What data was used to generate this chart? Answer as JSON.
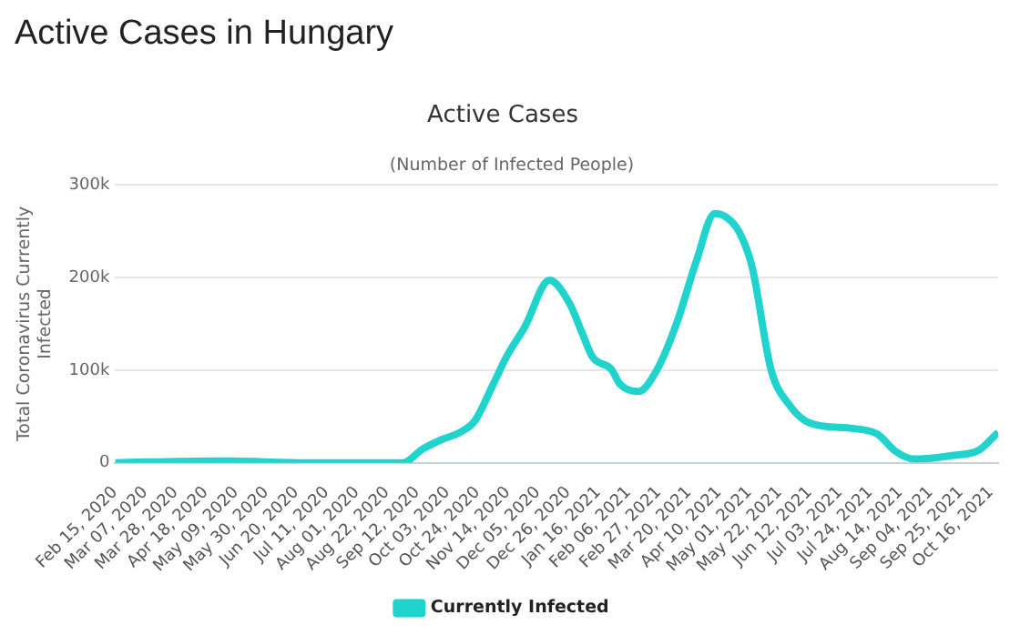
{
  "chart_data": {
    "type": "line",
    "title": "Active Cases in Hungary",
    "subtitle": "Active Cases",
    "annotations": [
      "(Number of Infected People)"
    ],
    "ylabel": "Total Coronavirus Currently Infected",
    "series": [
      {
        "name": "Currently Infected",
        "color": "#20d3cc",
        "x": [
          "2020-02-15",
          "2020-04-25",
          "2020-07-01",
          "2020-09-02",
          "2020-09-16",
          "2020-09-29",
          "2020-10-12",
          "2020-10-22",
          "2020-11-04",
          "2020-11-13",
          "2020-11-26",
          "2020-12-13",
          "2020-12-27",
          "2021-01-05",
          "2021-01-12",
          "2021-01-25",
          "2021-01-31",
          "2021-02-13",
          "2021-02-26",
          "2021-03-12",
          "2021-03-25",
          "2021-04-07",
          "2021-04-15",
          "2021-04-24",
          "2021-05-03",
          "2021-05-16",
          "2021-05-29",
          "2021-06-12",
          "2021-07-12",
          "2021-07-29",
          "2021-08-11",
          "2021-08-24",
          "2021-09-20",
          "2021-10-08",
          "2021-10-21"
        ],
        "values": [
          0,
          2000,
          0,
          0,
          15000,
          25000,
          33000,
          45000,
          85000,
          114000,
          147000,
          197000,
          172000,
          139000,
          114000,
          101000,
          85000,
          77000,
          101000,
          153000,
          217000,
          269000,
          265000,
          249000,
          211000,
          101000,
          62000,
          43000,
          37000,
          31000,
          12000,
          4000,
          8000,
          14000,
          33000
        ]
      }
    ],
    "xlim": [
      "2020-02-15",
      "2021-10-21"
    ],
    "xticks": [
      {
        "value": "2020-02-15",
        "label": "Feb 15, 2020"
      },
      {
        "value": "2020-03-07",
        "label": "Mar 07, 2020"
      },
      {
        "value": "2020-03-28",
        "label": "Mar 28, 2020"
      },
      {
        "value": "2020-04-18",
        "label": "Apr 18, 2020"
      },
      {
        "value": "2020-05-09",
        "label": "May 09, 2020"
      },
      {
        "value": "2020-05-30",
        "label": "May 30, 2020"
      },
      {
        "value": "2020-06-20",
        "label": "Jun 20, 2020"
      },
      {
        "value": "2020-07-11",
        "label": "Jul 11, 2020"
      },
      {
        "value": "2020-08-01",
        "label": "Aug 01, 2020"
      },
      {
        "value": "2020-08-22",
        "label": "Aug 22, 2020"
      },
      {
        "value": "2020-09-12",
        "label": "Sep 12, 2020"
      },
      {
        "value": "2020-10-03",
        "label": "Oct 03, 2020"
      },
      {
        "value": "2020-10-24",
        "label": "Oct 24, 2020"
      },
      {
        "value": "2020-11-14",
        "label": "Nov 14, 2020"
      },
      {
        "value": "2020-12-05",
        "label": "Dec 05, 2020"
      },
      {
        "value": "2020-12-26",
        "label": "Dec 26, 2020"
      },
      {
        "value": "2021-01-16",
        "label": "Jan 16, 2021"
      },
      {
        "value": "2021-02-06",
        "label": "Feb 06, 2021"
      },
      {
        "value": "2021-02-27",
        "label": "Feb 27, 2021"
      },
      {
        "value": "2021-03-20",
        "label": "Mar 20, 2021"
      },
      {
        "value": "2021-04-10",
        "label": "Apr 10, 2021"
      },
      {
        "value": "2021-05-01",
        "label": "May 01, 2021"
      },
      {
        "value": "2021-05-22",
        "label": "May 22, 2021"
      },
      {
        "value": "2021-06-12",
        "label": "Jun 12, 2021"
      },
      {
        "value": "2021-07-03",
        "label": "Jul 03, 2021"
      },
      {
        "value": "2021-07-24",
        "label": "Jul 24, 2021"
      },
      {
        "value": "2021-08-14",
        "label": "Aug 14, 2021"
      },
      {
        "value": "2021-09-04",
        "label": "Sep 04, 2021"
      },
      {
        "value": "2021-09-25",
        "label": "Sep 25, 2021"
      },
      {
        "value": "2021-10-16",
        "label": "Oct 16, 2021"
      }
    ],
    "ylim": [
      0,
      300000
    ],
    "yticks": [
      {
        "value": 0,
        "label": "0"
      },
      {
        "value": 100000,
        "label": "100k"
      },
      {
        "value": 200000,
        "label": "200k"
      },
      {
        "value": 300000,
        "label": "300k"
      }
    ],
    "grid": "y",
    "legend": "bottom",
    "marker": "none",
    "line_style": "solid"
  }
}
